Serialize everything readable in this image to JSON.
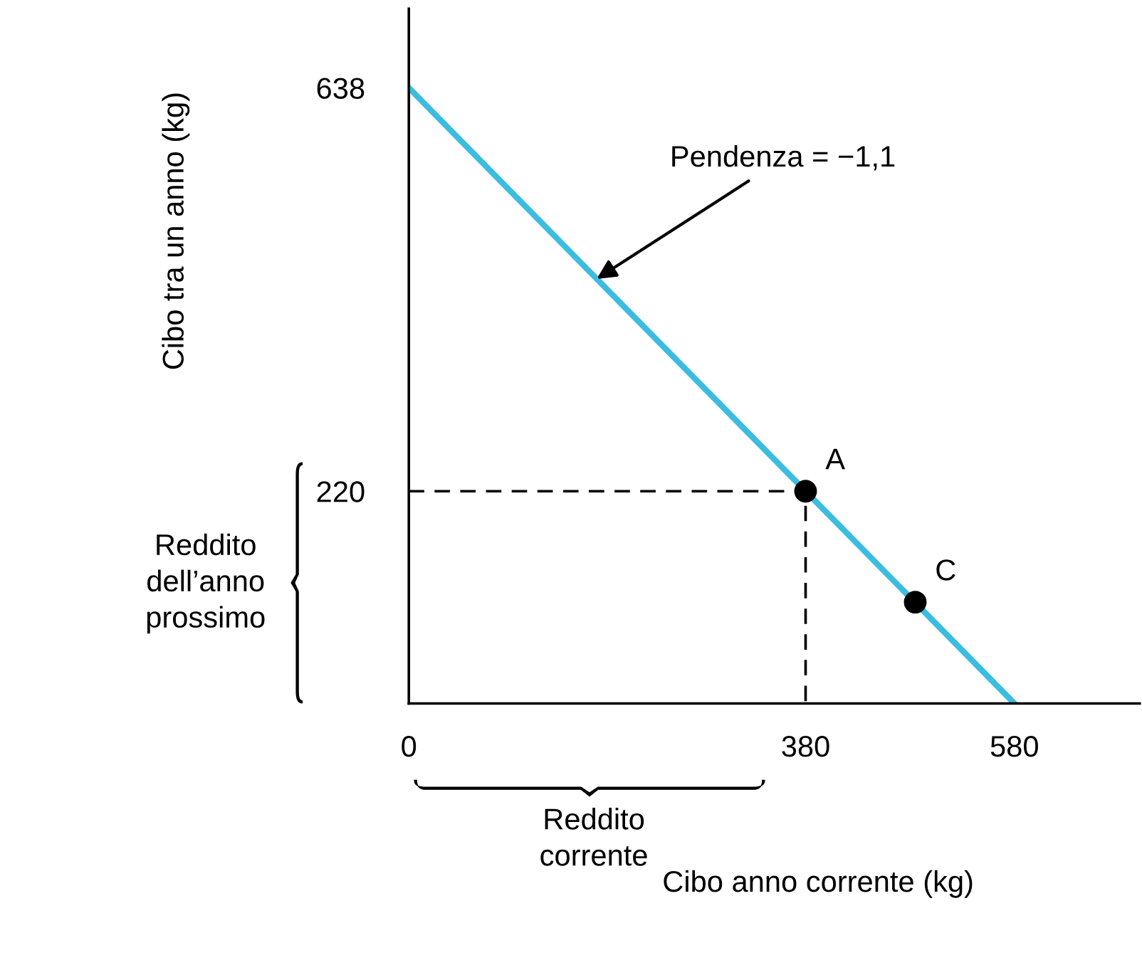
{
  "chart_data": {
    "type": "line",
    "xlabel": "Cibo anno corrente (kg)",
    "ylabel": "Cibo tra un anno (kg)",
    "series": [
      {
        "color": "#3bbde0",
        "x": [
          0,
          580
        ],
        "values": [
          638,
          0
        ]
      },
      {
        "color": "#000000",
        "line_style": "dashed",
        "x": [
          0,
          380,
          380
        ],
        "values": [
          220,
          220,
          0
        ]
      },
      {
        "type": "scatter",
        "color": "#000000",
        "marker": "circle",
        "x": [
          380,
          485
        ],
        "values": [
          220,
          105
        ]
      }
    ],
    "xlim": [
      0,
      700
    ],
    "ylim": [
      0,
      720
    ],
    "xticks": [
      0,
      380,
      580
    ],
    "yticks": [
      220,
      638
    ],
    "grid": false,
    "legend": false,
    "annotations": [
      {
        "text": "Pendenza = −1,1",
        "x": 180,
        "y": 440
      },
      {
        "text": "A",
        "x": 380,
        "y": 220
      },
      {
        "text": "C",
        "x": 485,
        "y": 105
      },
      "Reddito\ndell’anno\nprossimo",
      "Reddito\ncorrente"
    ]
  }
}
